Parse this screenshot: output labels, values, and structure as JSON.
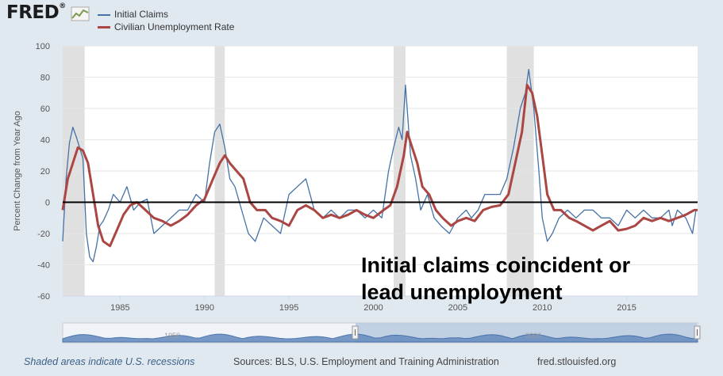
{
  "brand": {
    "logo_text": "FRED",
    "logo_sup": "®"
  },
  "footer": {
    "note": "Shaded areas indicate U.S. recessions",
    "sources": "Sources: BLS, U.S. Employment and Training Administration",
    "site": "fred.stlouisfed.org"
  },
  "annotation": "Initial claims coincident or\nlead unemployment",
  "navigator": {
    "labels": [
      "1950",
      "2000"
    ]
  },
  "colors": {
    "claims": "#4572a7",
    "unemployment": "#aa4643",
    "recession": "#e0e0e0",
    "zero_line": "#000000",
    "background": "#e1e9f0"
  },
  "chart_data": {
    "type": "line",
    "title": "",
    "xlabel": "",
    "ylabel": "Percent Change from Year Ago",
    "xlim": [
      1981.6,
      2019.2
    ],
    "ylim": [
      -60,
      100
    ],
    "y_ticks": [
      100,
      80,
      60,
      40,
      20,
      0,
      -20,
      -40,
      -60
    ],
    "x_ticks": [
      1985,
      1990,
      1995,
      2000,
      2005,
      2010,
      2015
    ],
    "grid": true,
    "legend_position": "top-left",
    "recessions": [
      [
        1981.6,
        1982.9
      ],
      [
        1990.6,
        1991.2
      ],
      [
        2001.2,
        2001.9
      ],
      [
        2007.9,
        2009.5
      ]
    ],
    "horizontal_line": 0,
    "series": [
      {
        "name": "Initial Claims",
        "color": "#4572a7",
        "x": [
          1981.6,
          1981.8,
          1982.0,
          1982.2,
          1982.4,
          1982.6,
          1982.8,
          1983.0,
          1983.2,
          1983.4,
          1983.6,
          1983.8,
          1984.0,
          1984.3,
          1984.6,
          1985.0,
          1985.4,
          1985.8,
          1986.2,
          1986.6,
          1987.0,
          1987.5,
          1988.0,
          1988.5,
          1989.0,
          1989.5,
          1990.0,
          1990.3,
          1990.6,
          1990.9,
          1991.2,
          1991.5,
          1991.8,
          1992.2,
          1992.6,
          1993.0,
          1993.5,
          1994.0,
          1994.5,
          1995.0,
          1995.5,
          1996.0,
          1996.5,
          1997.0,
          1997.5,
          1998.0,
          1998.5,
          1999.0,
          1999.5,
          2000.0,
          2000.5,
          2000.9,
          2001.2,
          2001.5,
          2001.7,
          2001.9,
          2002.2,
          2002.5,
          2002.8,
          2003.2,
          2003.6,
          2004.0,
          2004.5,
          2005.0,
          2005.5,
          2005.8,
          2006.2,
          2006.6,
          2007.0,
          2007.5,
          2007.9,
          2008.3,
          2008.7,
          2009.0,
          2009.2,
          2009.5,
          2009.8,
          2010.0,
          2010.3,
          2010.6,
          2011.0,
          2011.5,
          2012.0,
          2012.5,
          2013.0,
          2013.5,
          2014.0,
          2014.5,
          2015.0,
          2015.5,
          2016.0,
          2016.5,
          2017.0,
          2017.5,
          2017.7,
          2018.0,
          2018.5,
          2018.9,
          2019.1
        ],
        "values": [
          -25,
          15,
          38,
          48,
          42,
          35,
          28,
          -20,
          -35,
          -38,
          -28,
          -15,
          -12,
          -5,
          5,
          0,
          10,
          -5,
          0,
          2,
          -20,
          -15,
          -10,
          -5,
          -5,
          5,
          0,
          25,
          45,
          50,
          35,
          15,
          10,
          -5,
          -20,
          -25,
          -10,
          -15,
          -20,
          5,
          10,
          15,
          -5,
          -10,
          -5,
          -10,
          -5,
          -5,
          -10,
          -5,
          -10,
          20,
          35,
          48,
          40,
          75,
          30,
          15,
          -5,
          5,
          -10,
          -15,
          -20,
          -10,
          -5,
          -10,
          -5,
          5,
          5,
          5,
          15,
          35,
          60,
          70,
          85,
          60,
          20,
          -10,
          -25,
          -20,
          -10,
          -5,
          -10,
          -5,
          -5,
          -10,
          -10,
          -15,
          -5,
          -10,
          -5,
          -10,
          -10,
          -5,
          -15,
          -5,
          -10,
          -20,
          -5
        ]
      },
      {
        "name": "Civilian Unemployment Rate",
        "color": "#aa4643",
        "x": [
          1981.6,
          1981.9,
          1982.2,
          1982.5,
          1982.8,
          1983.1,
          1983.4,
          1983.7,
          1984.0,
          1984.4,
          1984.8,
          1985.2,
          1985.6,
          1986.0,
          1986.5,
          1987.0,
          1987.5,
          1988.0,
          1988.5,
          1989.0,
          1989.5,
          1990.0,
          1990.5,
          1990.9,
          1991.2,
          1991.5,
          1991.9,
          1992.3,
          1992.7,
          1993.1,
          1993.6,
          1994.0,
          1994.5,
          1995.0,
          1995.5,
          1996.0,
          1996.5,
          1997.0,
          1997.5,
          1998.0,
          1998.5,
          1999.0,
          1999.5,
          2000.0,
          2000.6,
          2001.0,
          2001.4,
          2001.8,
          2002.0,
          2002.3,
          2002.6,
          2002.9,
          2003.3,
          2003.7,
          2004.1,
          2004.6,
          2005.0,
          2005.5,
          2006.0,
          2006.5,
          2007.0,
          2007.5,
          2008.0,
          2008.4,
          2008.8,
          2009.1,
          2009.4,
          2009.7,
          2010.0,
          2010.3,
          2010.7,
          2011.1,
          2011.6,
          2012.0,
          2012.5,
          2013.0,
          2013.5,
          2014.0,
          2014.5,
          2015.0,
          2015.5,
          2016.0,
          2016.5,
          2017.0,
          2017.5,
          2018.0,
          2018.5,
          2019.0,
          2019.2
        ],
        "values": [
          -5,
          15,
          25,
          35,
          33,
          25,
          5,
          -15,
          -25,
          -28,
          -18,
          -8,
          -2,
          0,
          -5,
          -10,
          -12,
          -15,
          -12,
          -8,
          -2,
          2,
          15,
          25,
          30,
          25,
          20,
          15,
          0,
          -5,
          -5,
          -10,
          -12,
          -15,
          -5,
          -2,
          -5,
          -10,
          -8,
          -10,
          -8,
          -5,
          -8,
          -10,
          -5,
          -2,
          10,
          30,
          45,
          35,
          25,
          10,
          5,
          -5,
          -10,
          -15,
          -12,
          -10,
          -12,
          -5,
          -3,
          -2,
          5,
          25,
          45,
          75,
          70,
          55,
          30,
          5,
          -5,
          -5,
          -10,
          -12,
          -15,
          -18,
          -15,
          -12,
          -18,
          -17,
          -15,
          -10,
          -12,
          -10,
          -12,
          -10,
          -8,
          -5,
          -5
        ]
      }
    ]
  }
}
